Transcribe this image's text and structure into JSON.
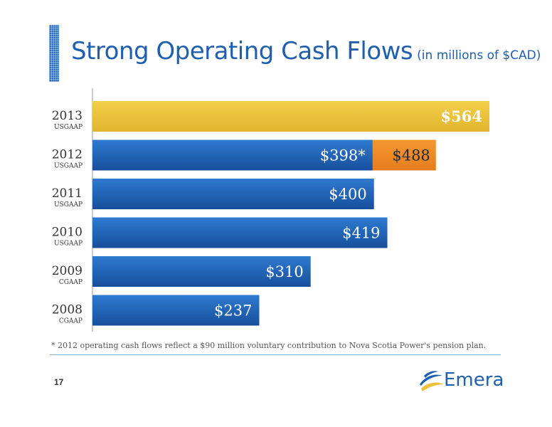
{
  "title": {
    "main": "Strong Operating Cash Flows",
    "sub": "(in millions of $CAD)"
  },
  "footnote": "* 2012 operating cash flows reflect a $90 million voluntary contribution to Nova Scotia Power's pension plan.",
  "page_number": "17",
  "logo": {
    "text": "Emera"
  },
  "colors": {
    "blue": "#1f5fae",
    "yellow": "#edc23a",
    "orange": "#ef8a26"
  },
  "chart_data": {
    "type": "bar",
    "orientation": "horizontal",
    "xlim": [
      0,
      564
    ],
    "rows": [
      {
        "year": "2013",
        "gaap": "USGAAP",
        "value": 564,
        "label": "$564",
        "color": "yellow"
      },
      {
        "year": "2012",
        "gaap": "USGAAP",
        "value": 398,
        "label": "$398*",
        "extra_value": 488,
        "extra_label": "$488",
        "color": "blue"
      },
      {
        "year": "2011",
        "gaap": "USGAAP",
        "value": 400,
        "label": "$400",
        "color": "blue"
      },
      {
        "year": "2010",
        "gaap": "USGAAP",
        "value": 419,
        "label": "$419",
        "color": "blue"
      },
      {
        "year": "2009",
        "gaap": "CGAAP",
        "value": 310,
        "label": "$310",
        "color": "blue"
      },
      {
        "year": "2008",
        "gaap": "CGAAP",
        "value": 237,
        "label": "$237",
        "color": "blue"
      }
    ]
  }
}
